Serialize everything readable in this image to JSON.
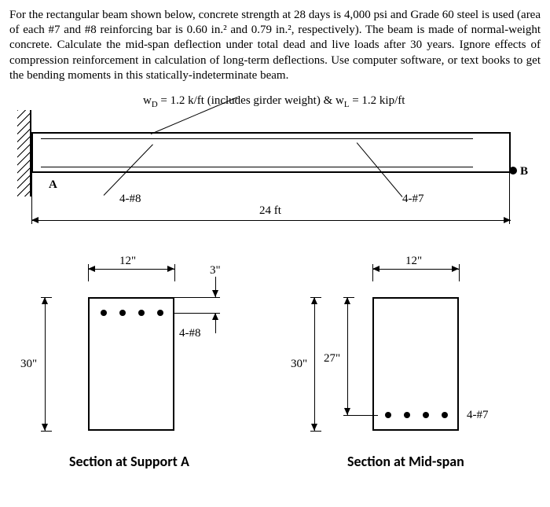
{
  "problem": {
    "text": "For the rectangular beam shown below, concrete strength at 28 days is 4,000 psi and Grade 60 steel is used (area of each #7 and #8 reinforcing bar is 0.60 in.² and 0.79 in.², respectively). The beam is made of normal-weight concrete. Calculate the mid-span deflection under total dead and live loads after 30 years. Ignore effects of compression reinforcement in calculation of long-term deflections. Use computer software, or text books to get the bending moments in this statically-indeterminate beam."
  },
  "load": {
    "label_html": "w<sub>D</sub> = 1.2 k/ft (includes girder weight) & w<sub>L</sub> = 1.2 kip/ft"
  },
  "elevation": {
    "pointA": "A",
    "pointB": "B",
    "span": "24 ft",
    "rebar_left": "4-#8",
    "rebar_right": "4-#7"
  },
  "sectionA": {
    "title": "Section at Support A",
    "width": "12\"",
    "height": "30\"",
    "cover": "3\"",
    "rebar": "4-#8",
    "bars": 4
  },
  "sectionMid": {
    "title": "Section at Mid-span",
    "width": "12\"",
    "height": "30\"",
    "d": "27\"",
    "rebar": "4-#7",
    "bars": 4
  },
  "style": {
    "text_color": "#000000",
    "bg": "#ffffff"
  }
}
